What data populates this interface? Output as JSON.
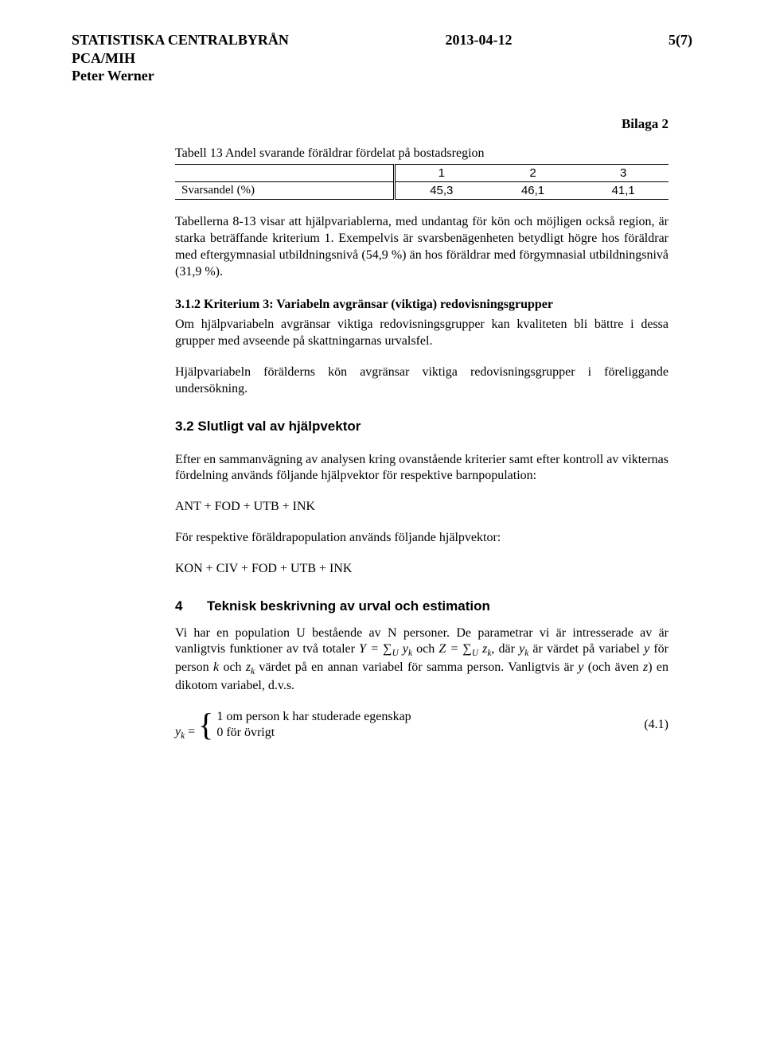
{
  "header": {
    "org": "STATISTISKA CENTRALBYRÅN",
    "date": "2013-04-12",
    "page": "5(7)",
    "dept": "PCA/MIH",
    "author": "Peter Werner"
  },
  "attachment_label": "Bilaga 2",
  "table13": {
    "caption": "Tabell 13 Andel svarande föräldrar fördelat på bostadsregion",
    "columns": [
      "1",
      "2",
      "3"
    ],
    "row_label": "Svarsandel (%)",
    "values": [
      "45,3",
      "46,1",
      "41,1"
    ]
  },
  "para1": "Tabellerna 8-13 visar att hjälpvariablerna, med undantag för kön och möjligen också region, är starka beträffande kriterium 1. Exempelvis är svarsbenägenheten betydligt högre hos föräldrar med eftergymnasial utbildningsnivå (54,9 %) än hos föräldrar med förgymnasial utbildningsnivå (31,9 %).",
  "h312": "3.1.2   Kriterium 3: Variabeln avgränsar (viktiga) redovisningsgrupper",
  "para2": "Om hjälpvariabeln avgränsar viktiga redovisningsgrupper kan kvaliteten bli bättre i dessa grupper med avseende på skattningarnas urvalsfel.",
  "para3": "Hjälpvariabeln förälderns kön avgränsar viktiga redovisningsgrupper i föreliggande undersökning.",
  "h32": "3.2  Slutligt val av hjälpvektor",
  "para4": "Efter en sammanvägning av analysen kring ovanstående kriterier samt efter kontroll av vikternas fördelning används följande hjälpvektor för respektive barnpopulation:",
  "formula1": "ANT + FOD + UTB + INK",
  "para5": "För respektive föräldrapopulation används följande hjälpvektor:",
  "formula2": "KON + CIV + FOD + UTB + INK",
  "h4_num": "4",
  "h4_text": "Teknisk beskrivning av urval och estimation",
  "para6_a": "Vi har en population U bestående av N personer. De parametrar vi är intresserade av är vanligtvis funktioner av två totaler ",
  "para6_b": " och ",
  "para6_c": ", där ",
  "para6_d": " är värdet på variabel ",
  "para6_e": " för person ",
  "para6_f": " och ",
  "para6_g": " värdet på en annan variabel för samma person. Vanligtvis är ",
  "para6_h": " (och även ",
  "para6_i": ") en dikotom variabel, d.v.s.",
  "eq41": {
    "case1": "1 om person k har studerade egenskap",
    "case2": "0 för övrigt",
    "number": "(4.1)"
  }
}
